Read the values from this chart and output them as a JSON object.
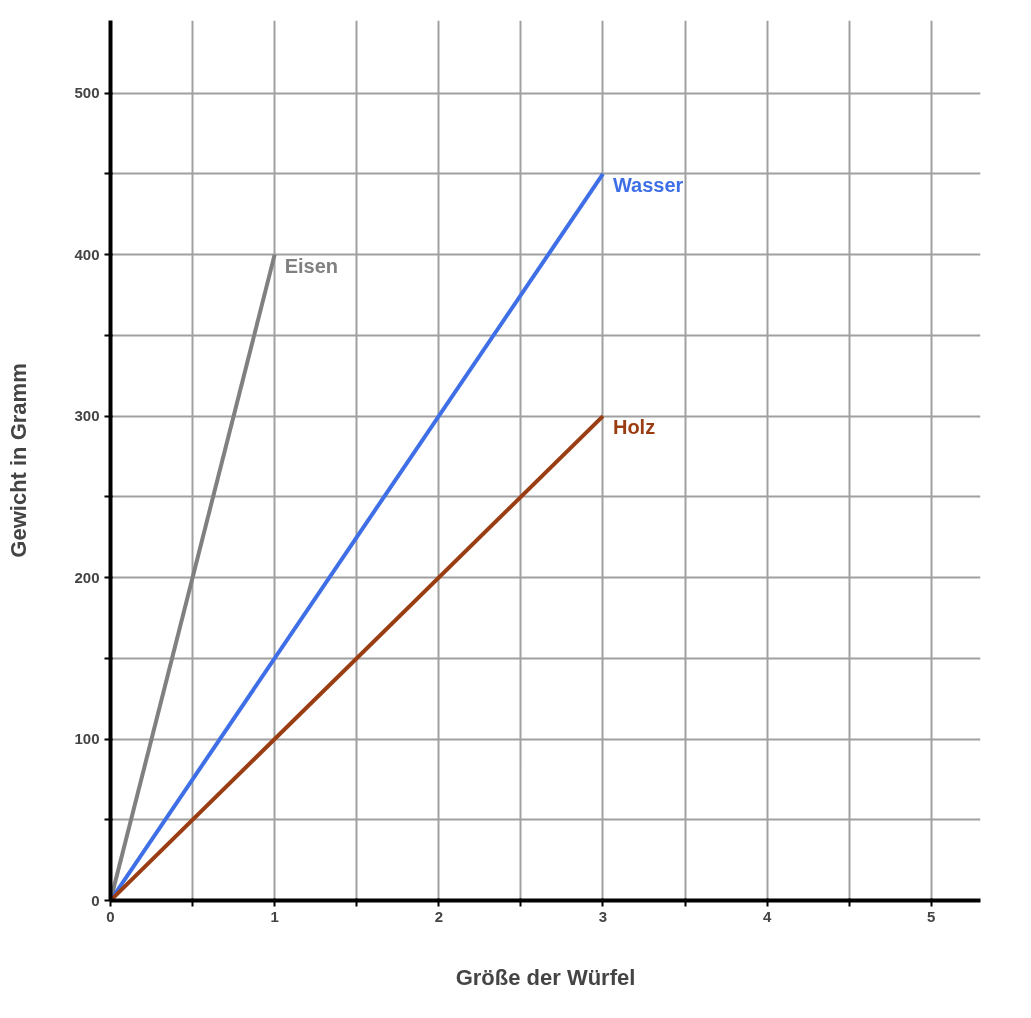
{
  "chart_data": {
    "type": "line",
    "xlabel": "Größe der Würfel",
    "ylabel": "Gewicht in Gramm",
    "xlim": [
      0,
      5.3
    ],
    "ylim": [
      0,
      545
    ],
    "xticks": [
      0,
      {
        "value": 0.5,
        "label": null
      },
      1,
      {
        "value": 1.5,
        "label": null
      },
      2,
      {
        "value": 2.5,
        "label": null
      },
      3,
      {
        "value": 3.5,
        "label": null
      },
      4,
      {
        "value": 4.5,
        "label": null
      },
      5
    ],
    "yticks": [
      0,
      {
        "value": 50,
        "label": null
      },
      100,
      {
        "value": 150,
        "label": null
      },
      200,
      {
        "value": 250,
        "label": null
      },
      300,
      {
        "value": 350,
        "label": null
      },
      400,
      {
        "value": 450,
        "label": null
      },
      500
    ],
    "grid": true,
    "legend": false,
    "marker": "none",
    "line_style": "solid",
    "series": [
      {
        "name": "Eisen",
        "color": "#808080",
        "x": [
          0,
          1
        ],
        "values": [
          0,
          400
        ]
      },
      {
        "name": "Wasser",
        "color": "#3f6fe6",
        "x": [
          0,
          3
        ],
        "values": [
          0,
          450
        ]
      },
      {
        "name": "Holz",
        "color": "#9a3d12",
        "x": [
          0,
          3
        ],
        "values": [
          0,
          300
        ]
      }
    ]
  }
}
